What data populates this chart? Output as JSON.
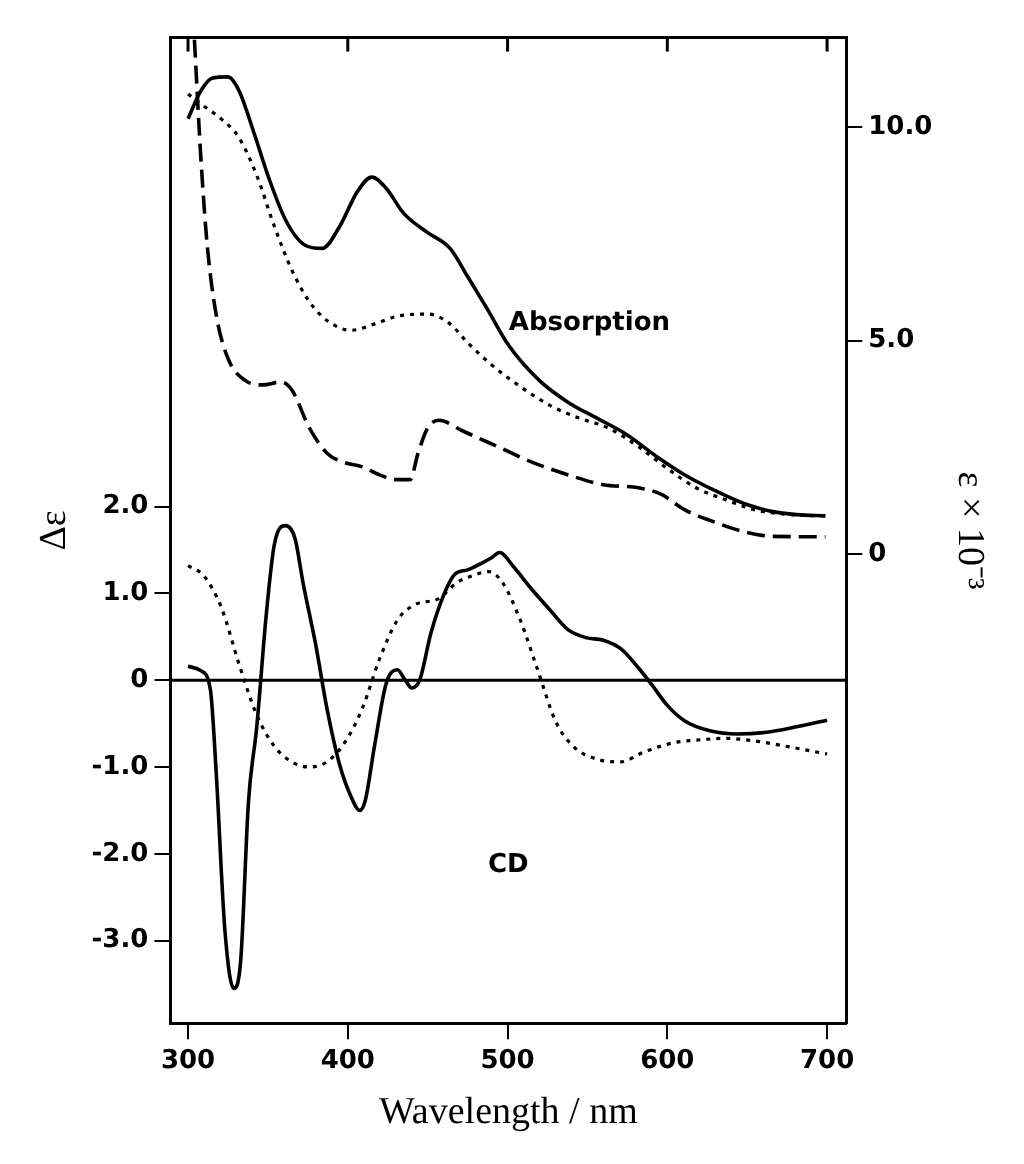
{
  "chart_data": {
    "type": "line",
    "xlabel": "Wavelength / nm",
    "ylabel": "Δε",
    "y2label": "ε × 10⁻³",
    "annotations": [
      "Absorption",
      "CD"
    ],
    "xlim": [
      289,
      712
    ],
    "xticks": [
      300,
      400,
      500,
      600,
      700
    ],
    "ylim": [
      -3.95,
      7.4
    ],
    "yticks": [
      {
        "value": -3,
        "label": "-3.0"
      },
      {
        "value": -2,
        "label": "-2.0"
      },
      {
        "value": -1,
        "label": "-1.0"
      },
      0,
      {
        "value": 1,
        "label": "1.0"
      },
      {
        "value": 2,
        "label": "2.0"
      }
    ],
    "y2lim": [
      -11.0,
      12.1
    ],
    "y2ticks": [
      0,
      {
        "value": 5,
        "label": "5.0"
      },
      {
        "value": 10,
        "label": "10.0"
      }
    ],
    "ref_lines": [
      {
        "axis": "y",
        "value": 0,
        "color": "#000000"
      }
    ],
    "grid": false,
    "legend": false,
    "marker": "none",
    "series": [
      {
        "color": "#000000",
        "line_style": "solid",
        "x": [
          300,
          308,
          314,
          317.6,
          323,
          328.6,
          333,
          337.8,
          343,
          349,
          354,
          361,
          367,
          372,
          380,
          387,
          395,
          402,
          407.5,
          411,
          416.7,
          424,
          431,
          436,
          440,
          445,
          452,
          460,
          467,
          475,
          483,
          490,
          495,
          504,
          515,
          527,
          538,
          549,
          560,
          571,
          582,
          591,
          600,
          611,
          626,
          644,
          662,
          680,
          700
        ],
        "values": [
          0.16,
          0.11,
          -0.11,
          -1.05,
          -2.86,
          -3.55,
          -3.22,
          -1.41,
          -0.54,
          0.76,
          1.56,
          1.78,
          1.63,
          1.12,
          0.4,
          -0.33,
          -0.98,
          -1.34,
          -1.5,
          -1.38,
          -0.76,
          -0.04,
          0.12,
          0,
          -0.09,
          0,
          0.54,
          0.98,
          1.22,
          1.27,
          1.34,
          1.41,
          1.47,
          1.3,
          1.05,
          0.8,
          0.58,
          0.49,
          0.46,
          0.36,
          0.14,
          -0.07,
          -0.29,
          -0.47,
          -0.58,
          -0.62,
          -0.6,
          -0.54,
          -0.46
        ]
      },
      {
        "color": "#000000",
        "line_style": "dotted",
        "x": [
          300,
          310,
          321,
          332,
          343,
          354,
          365,
          376,
          387,
          398,
          409,
          420,
          431,
          442,
          457,
          468,
          479,
          488,
          497,
          508,
          519,
          530,
          541,
          556,
          571,
          585,
          604,
          618,
          637,
          655,
          674,
          700
        ],
        "values": [
          1.32,
          1.2,
          0.83,
          0.18,
          -0.4,
          -0.76,
          -0.94,
          -1.0,
          -0.94,
          -0.72,
          -0.33,
          0.25,
          0.69,
          0.87,
          0.94,
          1.12,
          1.21,
          1.25,
          1.12,
          0.69,
          0.11,
          -0.47,
          -0.76,
          -0.91,
          -0.94,
          -0.83,
          -0.72,
          -0.69,
          -0.67,
          -0.7,
          -0.76,
          -0.85
        ]
      },
      {
        "color": "#000000",
        "line_style": "solid",
        "axis": "y2",
        "x": [
          300,
          308,
          315,
          325,
          332,
          341,
          350,
          361,
          373,
          384,
          395,
          406,
          415,
          424,
          435,
          450,
          464,
          475,
          487,
          501,
          520,
          538,
          556,
          574,
          593,
          611,
          630,
          648,
          666,
          681,
          699
        ],
        "values": [
          10.2,
          10.85,
          11.15,
          11.18,
          10.85,
          9.9,
          8.87,
          7.83,
          7.24,
          7.16,
          7.68,
          8.49,
          8.83,
          8.57,
          7.98,
          7.53,
          7.16,
          6.5,
          5.76,
          4.87,
          4.06,
          3.55,
          3.18,
          2.81,
          2.29,
          1.85,
          1.48,
          1.18,
          0.99,
          0.92,
          0.89
        ]
      },
      {
        "color": "#000000",
        "line_style": "dotted",
        "axis": "y2",
        "x": [
          300,
          310,
          321,
          332,
          343,
          354,
          365,
          376,
          387,
          402,
          417,
          431,
          450,
          464,
          475,
          490,
          508,
          527,
          545,
          563,
          582,
          600,
          618,
          637,
          655,
          677,
          699
        ],
        "values": [
          10.78,
          10.49,
          10.19,
          9.75,
          8.87,
          7.68,
          6.65,
          5.91,
          5.47,
          5.24,
          5.39,
          5.57,
          5.62,
          5.39,
          4.95,
          4.43,
          3.92,
          3.47,
          3.18,
          2.95,
          2.51,
          2.0,
          1.55,
          1.26,
          1.03,
          0.92,
          0.89
        ]
      },
      {
        "color": "#000000",
        "line_style": "dashed",
        "axis": "y2",
        "x": [
          304,
          308,
          312,
          317.6,
          325,
          336,
          347,
          358,
          365,
          376,
          387,
          398,
          409,
          420,
          431,
          439,
          444,
          450,
          457,
          472,
          494,
          516,
          538,
          560,
          582,
          596,
          611,
          630,
          648,
          666,
          699
        ],
        "values": [
          12.05,
          9.3,
          7.24,
          5.61,
          4.58,
          4.06,
          3.96,
          4.03,
          3.84,
          2.95,
          2.36,
          2.14,
          2.04,
          1.85,
          1.74,
          1.74,
          2.36,
          2.95,
          3.13,
          2.88,
          2.51,
          2.14,
          1.85,
          1.62,
          1.55,
          1.4,
          1.03,
          0.74,
          0.52,
          0.41,
          0.4
        ]
      }
    ]
  }
}
